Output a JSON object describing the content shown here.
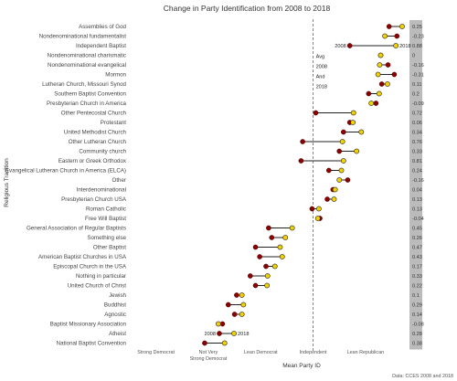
{
  "chart_data": {
    "type": "dumbbell",
    "title": "Change in Party Identification from 2008 to 2018",
    "xlabel": "Mean Party ID",
    "ylabel": "Religious Tradition",
    "source": "Data: CCES 2008 and 2018",
    "xlim": [
      1,
      6.2
    ],
    "x_ticks": [
      {
        "value": 1.5,
        "label": "Strong Democrat"
      },
      {
        "value": 2.5,
        "label": "Not Very Strong Democrat"
      },
      {
        "value": 3.5,
        "label": "Lean Democrat"
      },
      {
        "value": 4.5,
        "label": "Independent"
      },
      {
        "value": 5.5,
        "label": "Lean Republican"
      }
    ],
    "avg_line": 4.5,
    "legend": {
      "start": "2008",
      "end": "2018"
    },
    "avg_annotation": {
      "title": "Avg",
      "start": "2008",
      "and": "And",
      "end": "2018"
    },
    "categories": [
      "Assemblies of God",
      "Nondenominational fundamentalist",
      "Independent Baptist",
      "Nondenominational charismatic",
      "Nondenominational evangelical",
      "Mormon",
      "Lutheran Church, Missouri Synod",
      "Southern Baptist Convention",
      "Presbyterian Church in America",
      "Other Pentecostal Church",
      "Protestant",
      "United Methodist Church",
      "Other Lutheran Church",
      "Community church",
      "Eastern or Greek Orthodox",
      "Evangelical Lutheran Church in America (ELCA)",
      "Other",
      "Interdenominational",
      "Presbyterian Church USA",
      "Roman Catholic",
      "Free Will Baptist",
      "General Association of Regular Baptists",
      "Something else",
      "Other Baptist",
      "American Baptist Churches in USA",
      "Episcopal Church in the USA",
      "Nothing in particular",
      "United Church of Christ",
      "Jewish",
      "Buddhist",
      "Agnostic",
      "Baptist Missionary Association",
      "Atheist",
      "National Baptist Convention"
    ],
    "series": [
      {
        "name": "2008",
        "values": [
          5.95,
          6.1,
          5.2,
          5.79,
          5.93,
          6.05,
          5.81,
          5.56,
          5.7,
          4.55,
          5.2,
          5.08,
          4.3,
          5.0,
          4.27,
          4.8,
          5.16,
          4.88,
          4.77,
          4.48,
          4.63,
          3.65,
          3.71,
          3.4,
          3.48,
          3.6,
          3.3,
          3.4,
          3.04,
          2.88,
          3.0,
          2.77,
          2.71,
          2.43
        ]
      },
      {
        "name": "2018",
        "values": [
          6.2,
          5.87,
          6.08,
          5.79,
          5.77,
          5.74,
          5.92,
          5.76,
          5.61,
          5.27,
          5.26,
          5.42,
          5.06,
          5.33,
          5.08,
          5.04,
          5.0,
          4.92,
          4.9,
          4.61,
          4.59,
          4.1,
          3.97,
          3.87,
          3.91,
          3.77,
          3.63,
          3.62,
          3.14,
          3.17,
          3.14,
          2.69,
          2.99,
          2.81
        ]
      }
    ],
    "diff_labels": [
      "0.25",
      "-0.23",
      "0.88",
      "0",
      "-0.16",
      "-0.31",
      "0.11",
      "0.2",
      "-0.09",
      "0.72",
      "0.06",
      "0.34",
      "0.76",
      "0.33",
      "0.81",
      "0.24",
      "-0.16",
      "0.04",
      "0.13",
      "0.13",
      "-0.04",
      "0.45",
      "0.26",
      "0.47",
      "0.43",
      "0.17",
      "0.33",
      "0.22",
      "0.1",
      "0.29",
      "0.14",
      "-0.08",
      "0.28",
      "0.38"
    ],
    "colors": {
      "start": "#8b0000",
      "end": "#f2d100",
      "bar": "#bbbbbb",
      "line": "#222222"
    }
  }
}
